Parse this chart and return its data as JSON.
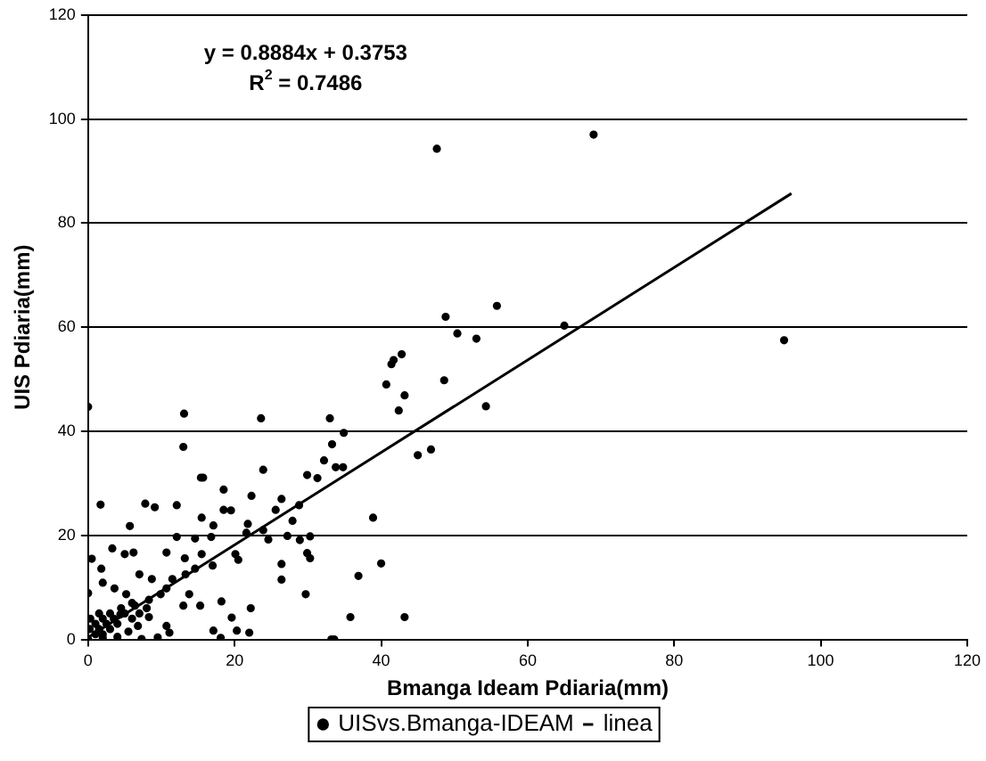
{
  "chart_data": {
    "type": "scatter",
    "xlabel": "Bmanga Ideam Pdiaria(mm)",
    "ylabel": "UIS Pdiaria(mm)",
    "annotations": [
      "y = 0.8884x + 0.3753",
      "R$^{2}$ = 0.7486"
    ],
    "xlim": [
      0,
      120
    ],
    "xticks": [
      0,
      20,
      40,
      60,
      80,
      100,
      120
    ],
    "ylim": [
      0,
      120
    ],
    "yticks": [
      0,
      20,
      40,
      60,
      80,
      100,
      120
    ],
    "grid": "y",
    "legend": "bottom",
    "series": [
      {
        "name": "UISvs.Bmanga-IDEAM",
        "color": "#000000",
        "type": "scatter",
        "marker": "circle",
        "x": [
          47.6,
          69.0,
          95,
          48.8,
          55.8,
          65.0,
          50.4,
          53.0,
          42.8,
          41.7,
          41.4,
          40.7,
          48.6,
          43.2,
          42.4,
          54.3,
          45.0,
          46.8,
          33.0,
          23.6,
          13.1,
          13.0,
          33.3,
          34.9,
          32.2,
          33.8,
          34.8,
          23.9,
          15.4,
          15.7,
          29.9,
          31.3,
          18.5,
          22.3,
          26.4,
          1.7,
          7.8,
          9.1,
          12.1,
          18.5,
          19.5,
          25.6,
          28.8,
          27.9,
          15.5,
          17.1,
          5.7,
          21.8,
          23.9,
          24.6,
          21.6,
          27.2,
          28.9,
          30.3,
          29.9,
          30.3,
          38.9,
          40.0,
          36.9,
          35.8,
          43.2,
          26.4,
          26.4,
          29.7,
          22.2,
          19.6,
          18.2,
          18.1,
          17.1,
          20.3,
          22.0,
          12.1,
          14.6,
          16.8,
          3.3,
          5.0,
          6.2,
          0.5,
          10.7,
          13.2,
          15.5,
          17.0,
          20.1,
          20.5,
          1.8,
          7.0,
          8.7,
          11.5,
          13.3,
          14.6,
          10.7,
          13.8,
          15.3,
          13.0,
          8.3,
          9.9,
          6.4,
          5.2,
          3.6,
          2.0,
          0,
          4.4,
          8.3,
          6.8,
          10.7,
          11.1,
          9.5,
          7.3,
          0,
          33.2,
          33.6,
          1,
          1.5,
          2,
          2.5,
          3,
          3.5,
          1,
          2,
          4,
          0.2,
          5,
          4.5,
          6,
          3,
          1.5,
          0.3,
          2,
          4,
          5.5,
          7,
          6,
          8,
          0
        ],
        "values": [
          94.3,
          97.0,
          57.5,
          62.0,
          64.1,
          60.3,
          58.8,
          57.8,
          54.8,
          53.7,
          52.9,
          49.0,
          49.8,
          46.9,
          44.0,
          44.8,
          35.4,
          36.5,
          42.5,
          42.5,
          43.4,
          37.0,
          37.5,
          39.7,
          34.4,
          33.1,
          33.1,
          32.6,
          31.1,
          31.1,
          31.6,
          31.0,
          28.8,
          27.6,
          27.0,
          25.9,
          26.1,
          25.4,
          25.8,
          24.9,
          24.8,
          24.9,
          25.8,
          22.8,
          23.4,
          21.9,
          21.8,
          22.2,
          21.0,
          19.2,
          20.5,
          19.9,
          19.1,
          19.8,
          16.6,
          15.6,
          23.4,
          14.6,
          12.2,
          4.3,
          4.3,
          14.5,
          11.5,
          8.7,
          6.0,
          4.2,
          7.3,
          0.3,
          1.7,
          1.7,
          1.3,
          19.7,
          19.4,
          19.7,
          17.5,
          16.4,
          16.7,
          15.5,
          16.7,
          15.6,
          16.4,
          14.2,
          16.4,
          15.3,
          13.6,
          12.5,
          11.6,
          11.6,
          12.5,
          13.6,
          9.8,
          8.7,
          6.5,
          6.5,
          7.6,
          8.7,
          6.5,
          8.7,
          9.8,
          10.9,
          8.9,
          4.8,
          4.3,
          2.6,
          2.6,
          1.3,
          0.4,
          0.1,
          44.7,
          0,
          0,
          1,
          2,
          1,
          3,
          2,
          4,
          3,
          4,
          3,
          2,
          5,
          6,
          4,
          5,
          5,
          4,
          0.3,
          0.5,
          1.5,
          5,
          7,
          6,
          0
        ]
      },
      {
        "name": "linea",
        "color": "#000000",
        "type": "line",
        "x": [
          0,
          96
        ],
        "values": [
          0.4,
          85.7
        ]
      }
    ]
  }
}
